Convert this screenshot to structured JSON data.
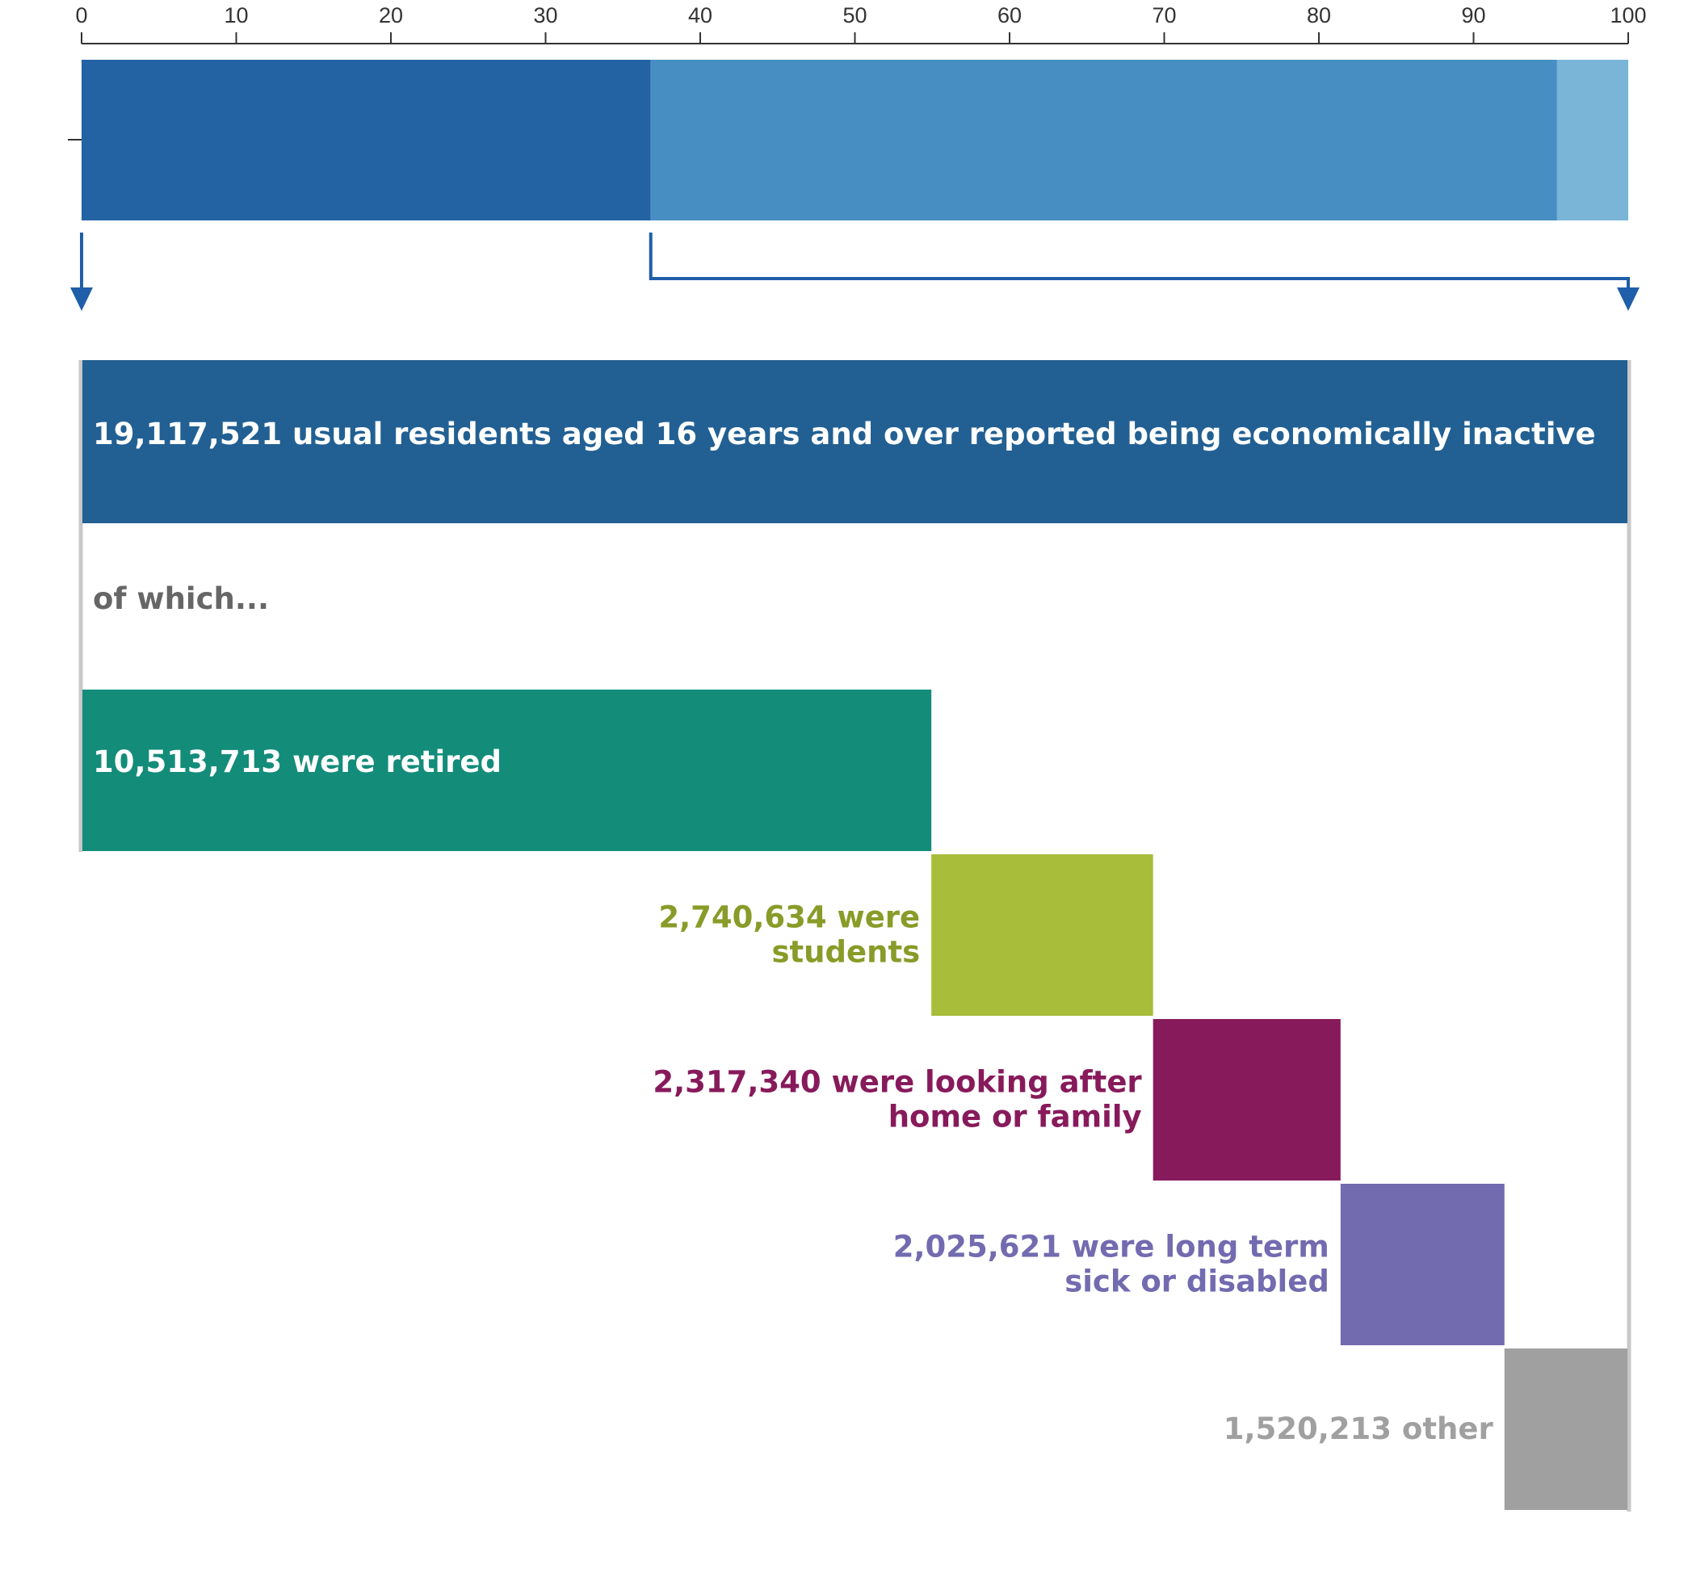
{
  "chart_data": [
    {
      "type": "bar",
      "orientation": "horizontal-stacked",
      "xlim": [
        0,
        100
      ],
      "xticks": [
        "0",
        "10",
        "20",
        "30",
        "40",
        "50",
        "60",
        "70",
        "80",
        "90",
        "100"
      ],
      "segments": [
        {
          "value": 36.8,
          "color": "#2363a4"
        },
        {
          "value": 58.6,
          "color": "#478fc3"
        },
        {
          "value": 4.6,
          "color": "#7ab5d8"
        }
      ]
    },
    {
      "type": "bar",
      "orientation": "waterfall",
      "total": {
        "value": 19117521,
        "label": "19,117,521 usual residents aged 16 years and over reported being economically inactive",
        "color": "#226093"
      },
      "note": "of which...",
      "series": [
        {
          "value": 10513713,
          "label_lines": [
            "10,513,713 were retired"
          ],
          "color": "#138c7a",
          "label_color": "#ffffff",
          "label_inside": true
        },
        {
          "value": 2740634,
          "label_lines": [
            "2,740,634 were",
            "students"
          ],
          "color": "#a8bd3a",
          "label_color": "#899b28",
          "label_inside": false
        },
        {
          "value": 2317340,
          "label_lines": [
            "2,317,340 were looking after",
            "home or family"
          ],
          "color": "#871a5b",
          "label_color": "#871a5b",
          "label_inside": false
        },
        {
          "value": 2025621,
          "label_lines": [
            "2,025,621 were long term",
            "sick or disabled"
          ],
          "color": "#726bb0",
          "label_color": "#726bb0",
          "label_inside": false
        },
        {
          "value": 1520213,
          "label_lines": [
            "1,520,213 other"
          ],
          "color": "#a0a0a0",
          "label_color": "#a0a0a0",
          "label_inside": false
        }
      ]
    }
  ],
  "colors": {
    "arrow": "#1f5ea8",
    "axis": "#333333",
    "frame": "#c8c8c8"
  }
}
